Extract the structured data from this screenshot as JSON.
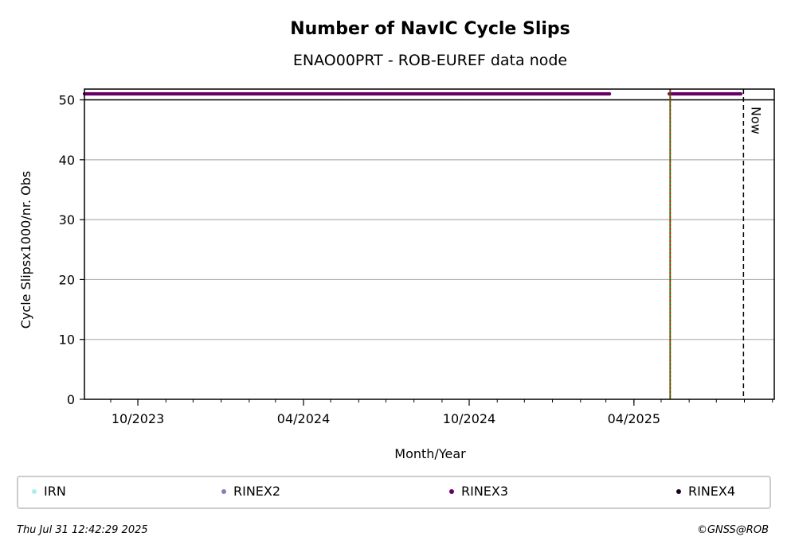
{
  "chart_data": {
    "type": "scatter",
    "title": "Number of NavIC Cycle Slips",
    "subtitle": "ENAO00PRT - ROB-EUREF data node",
    "xlabel": "Month/Year",
    "ylabel": "Cycle Slipsx1000/nr. Obs",
    "x_tick_labels": [
      "10/2023",
      "04/2024",
      "10/2024",
      "04/2025"
    ],
    "x_ticks": [
      "2023-10-01",
      "2024-04-01",
      "2024-10-01",
      "2025-04-01"
    ],
    "xlim": [
      "2023-08-03",
      "2025-09-03"
    ],
    "y_ticks": [
      0,
      10,
      20,
      30,
      40,
      50
    ],
    "ylim": [
      0,
      51.8
    ],
    "grid": "y",
    "clip_line_y": 50,
    "series": [
      {
        "name": "RINEX3",
        "color": "#660066",
        "segments": [
          {
            "start": "2023-08-03",
            "end": "2025-03-05",
            "value": 51
          },
          {
            "start": "2025-05-10",
            "end": "2025-07-28",
            "value": 51
          }
        ]
      }
    ],
    "markers": [
      {
        "date": "2025-05-11",
        "style": "green-red-dotted",
        "color": "#008000",
        "color2": "#ff0000"
      },
      {
        "date": "2025-07-31",
        "style": "dashed",
        "label": "Now",
        "color": "#000000"
      }
    ],
    "legend": {
      "position": "bottom",
      "entries": [
        {
          "label": "IRN",
          "color": "#aaeeee"
        },
        {
          "label": "RINEX2",
          "color": "#8080c0"
        },
        {
          "label": "RINEX3",
          "color": "#660066"
        },
        {
          "label": "RINEX4",
          "color": "#1a0026"
        }
      ]
    }
  },
  "footer": {
    "timestamp": "Thu Jul 31 12:42:29 2025",
    "credit": "©GNSS@ROB"
  }
}
